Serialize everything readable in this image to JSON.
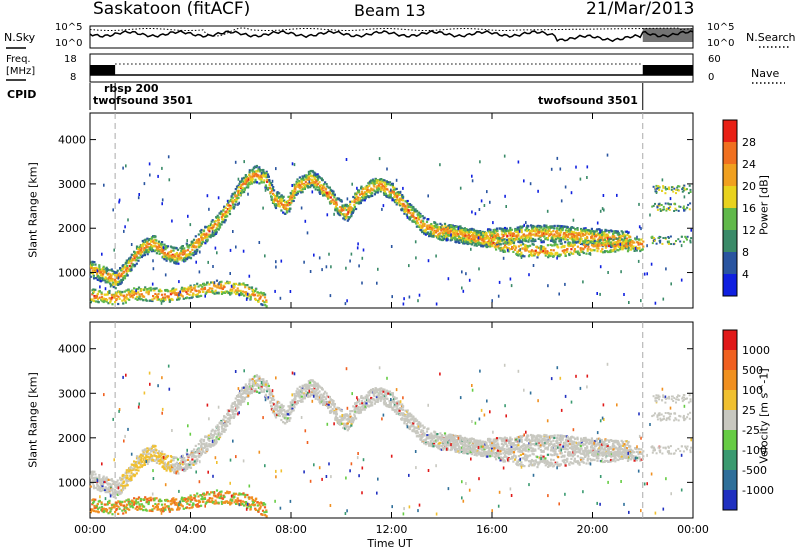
{
  "header": {
    "station": "Saskatoon (fitACF)",
    "beam": "Beam 13",
    "date": "21/Mar/2013"
  },
  "labels": {
    "nsky": "N.Sky",
    "nsearch": "N.Search",
    "freq_line1": "Freq.",
    "freq_line2": "[MHz]",
    "nave": "Nave",
    "cpid": "CPID",
    "noise_ticks": [
      "10^5",
      "10^0"
    ],
    "freq_ticks": [
      "18",
      "8"
    ],
    "nave_ticks": [
      "60",
      "0"
    ]
  },
  "cpid_segments": [
    {
      "label": "twofsound 3501",
      "start_h": 0.0,
      "end_h": 1.0
    },
    {
      "label": "rbsp 200",
      "start_h": 1.0,
      "end_h": 22.0
    },
    {
      "label": "twofsound 3501",
      "start_h": 22.0,
      "end_h": 24.0
    }
  ],
  "chart_data": [
    {
      "type": "heatmap",
      "quantity": "Power",
      "xlabel": "Time UT",
      "ylabel": "Slant Range [km]",
      "xlim": [
        0,
        24
      ],
      "ylim": [
        200,
        4600
      ],
      "yticks": [
        1000,
        2000,
        3000,
        4000
      ],
      "colorbar_label": "Power [dB]",
      "colorbar_ticks": [
        "4",
        "8",
        "12",
        "16",
        "20",
        "24",
        "28"
      ],
      "colorbar_colors": [
        "#1020e0",
        "#2a55a0",
        "#3a8a68",
        "#60b84a",
        "#e8d21e",
        "#f0a020",
        "#f07020",
        "#e82015"
      ],
      "scatter_bands": [
        {
          "t": [
            0.0,
            0.5,
            1.0,
            1.5,
            2.0,
            2.5,
            3.0,
            3.5,
            4.0,
            4.5,
            5.0,
            5.5,
            6.0,
            6.3,
            6.6,
            7.0,
            7.3,
            7.8,
            8.2,
            8.8,
            9.3,
            9.8,
            10.2,
            10.6,
            11.0,
            11.5,
            12.0,
            12.6,
            13.2,
            13.8,
            14.5,
            15.5,
            16.5,
            17.5,
            18.5,
            19.5,
            20.5,
            21.5
          ],
          "range_km": [
            1100,
            1000,
            850,
            1150,
            1550,
            1700,
            1450,
            1400,
            1550,
            1850,
            2100,
            2500,
            2950,
            3150,
            3250,
            3100,
            2700,
            2500,
            2950,
            3150,
            2900,
            2550,
            2350,
            2700,
            2900,
            3000,
            2850,
            2450,
            2100,
            1950,
            1900,
            1800,
            1850,
            1900,
            1900,
            1850,
            1800,
            1750
          ]
        },
        {
          "t": [
            0.0,
            1.0,
            2.0,
            3.0,
            4.0,
            5.0,
            6.0,
            7.0
          ],
          "range_km": [
            500,
            450,
            550,
            500,
            600,
            700,
            650,
            400
          ]
        },
        {
          "t": [
            14.0,
            15.0,
            16.0,
            17.0,
            18.0,
            19.0,
            20.0,
            21.0,
            22.0
          ],
          "range_km": [
            2000,
            1850,
            1700,
            1550,
            1500,
            1550,
            1600,
            1650,
            1650
          ]
        }
      ]
    },
    {
      "type": "heatmap",
      "quantity": "Velocity",
      "xlabel": "Time UT",
      "ylabel": "Slant Range [km]",
      "xlim": [
        0,
        24
      ],
      "ylim": [
        200,
        4600
      ],
      "yticks": [
        1000,
        2000,
        3000,
        4000
      ],
      "xticks": [
        "00:00",
        "04:00",
        "08:00",
        "12:00",
        "16:00",
        "20:00",
        "00:00"
      ],
      "colorbar_label": "Velocity [m s^-1]",
      "colorbar_ticks": [
        "1000",
        "500",
        "100",
        "25",
        "-25",
        "-100",
        "-500",
        "-1000"
      ],
      "colorbar_colors": [
        "#2030c0",
        "#2f6f9a",
        "#3a9a70",
        "#66cc44",
        "#c8c8c0",
        "#f0c030",
        "#f09020",
        "#f06020",
        "#e01818"
      ]
    }
  ]
}
